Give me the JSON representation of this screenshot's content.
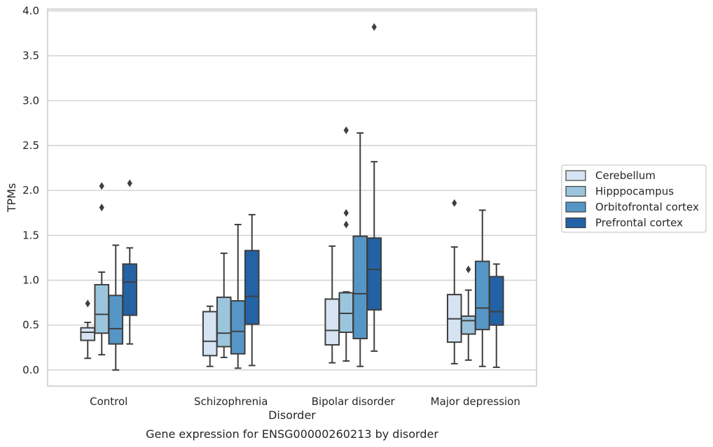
{
  "chart_data": {
    "type": "boxplot",
    "title": "",
    "caption": "Gene expression for ENSG00000260213 by disorder",
    "xlabel": "Disorder",
    "ylabel": "TPMs",
    "ylim": [
      -0.18,
      4.02
    ],
    "yticks": [
      "0.0",
      "0.5",
      "1.0",
      "1.5",
      "2.0",
      "2.5",
      "3.0",
      "3.5",
      "4.0"
    ],
    "categories": [
      "Control",
      "Schizophrenia",
      "Bipolar disorder",
      "Major depression"
    ],
    "grid": "horizontal",
    "legend_position": "right",
    "series": [
      {
        "name": "Cerebellum",
        "color": "#d6e3f2",
        "boxes": [
          {
            "whislo": 0.13,
            "q1": 0.33,
            "med": 0.42,
            "q3": 0.47,
            "whishi": 0.53,
            "fliers": [
              0.74
            ]
          },
          {
            "whislo": 0.04,
            "q1": 0.16,
            "med": 0.32,
            "q3": 0.65,
            "whishi": 0.71,
            "fliers": []
          },
          {
            "whislo": 0.08,
            "q1": 0.28,
            "med": 0.44,
            "q3": 0.79,
            "whishi": 1.38,
            "fliers": []
          },
          {
            "whislo": 0.07,
            "q1": 0.31,
            "med": 0.57,
            "q3": 0.84,
            "whishi": 1.37,
            "fliers": [
              1.86
            ]
          }
        ]
      },
      {
        "name": "Hipppocampus",
        "color": "#9bc5dd",
        "boxes": [
          {
            "whislo": 0.17,
            "q1": 0.41,
            "med": 0.62,
            "q3": 0.95,
            "whishi": 1.09,
            "fliers": [
              1.81,
              2.05
            ]
          },
          {
            "whislo": 0.14,
            "q1": 0.26,
            "med": 0.41,
            "q3": 0.81,
            "whishi": 1.3,
            "fliers": []
          },
          {
            "whislo": 0.1,
            "q1": 0.42,
            "med": 0.63,
            "q3": 0.86,
            "whishi": 0.87,
            "fliers": [
              1.62,
              1.75,
              2.67
            ]
          },
          {
            "whislo": 0.11,
            "q1": 0.4,
            "med": 0.55,
            "q3": 0.6,
            "whishi": 0.89,
            "fliers": [
              1.12
            ]
          }
        ]
      },
      {
        "name": "Orbitofrontal cortex",
        "color": "#5696c6",
        "boxes": [
          {
            "whislo": 0.0,
            "q1": 0.29,
            "med": 0.46,
            "q3": 0.83,
            "whishi": 1.39,
            "fliers": []
          },
          {
            "whislo": 0.02,
            "q1": 0.18,
            "med": 0.43,
            "q3": 0.77,
            "whishi": 1.62,
            "fliers": []
          },
          {
            "whislo": 0.04,
            "q1": 0.35,
            "med": 0.85,
            "q3": 1.49,
            "whishi": 2.64,
            "fliers": []
          },
          {
            "whislo": 0.04,
            "q1": 0.45,
            "med": 0.69,
            "q3": 1.21,
            "whishi": 1.78,
            "fliers": []
          }
        ]
      },
      {
        "name": "Prefrontal cortex",
        "color": "#2362a5",
        "boxes": [
          {
            "whislo": 0.29,
            "q1": 0.61,
            "med": 0.98,
            "q3": 1.18,
            "whishi": 1.36,
            "fliers": [
              2.08
            ]
          },
          {
            "whislo": 0.05,
            "q1": 0.51,
            "med": 0.82,
            "q3": 1.33,
            "whishi": 1.73,
            "fliers": []
          },
          {
            "whislo": 0.21,
            "q1": 0.67,
            "med": 1.12,
            "q3": 1.47,
            "whishi": 2.32,
            "fliers": [
              3.82
            ]
          },
          {
            "whislo": 0.03,
            "q1": 0.5,
            "med": 0.65,
            "q3": 1.04,
            "whishi": 1.18,
            "fliers": []
          }
        ]
      }
    ]
  }
}
